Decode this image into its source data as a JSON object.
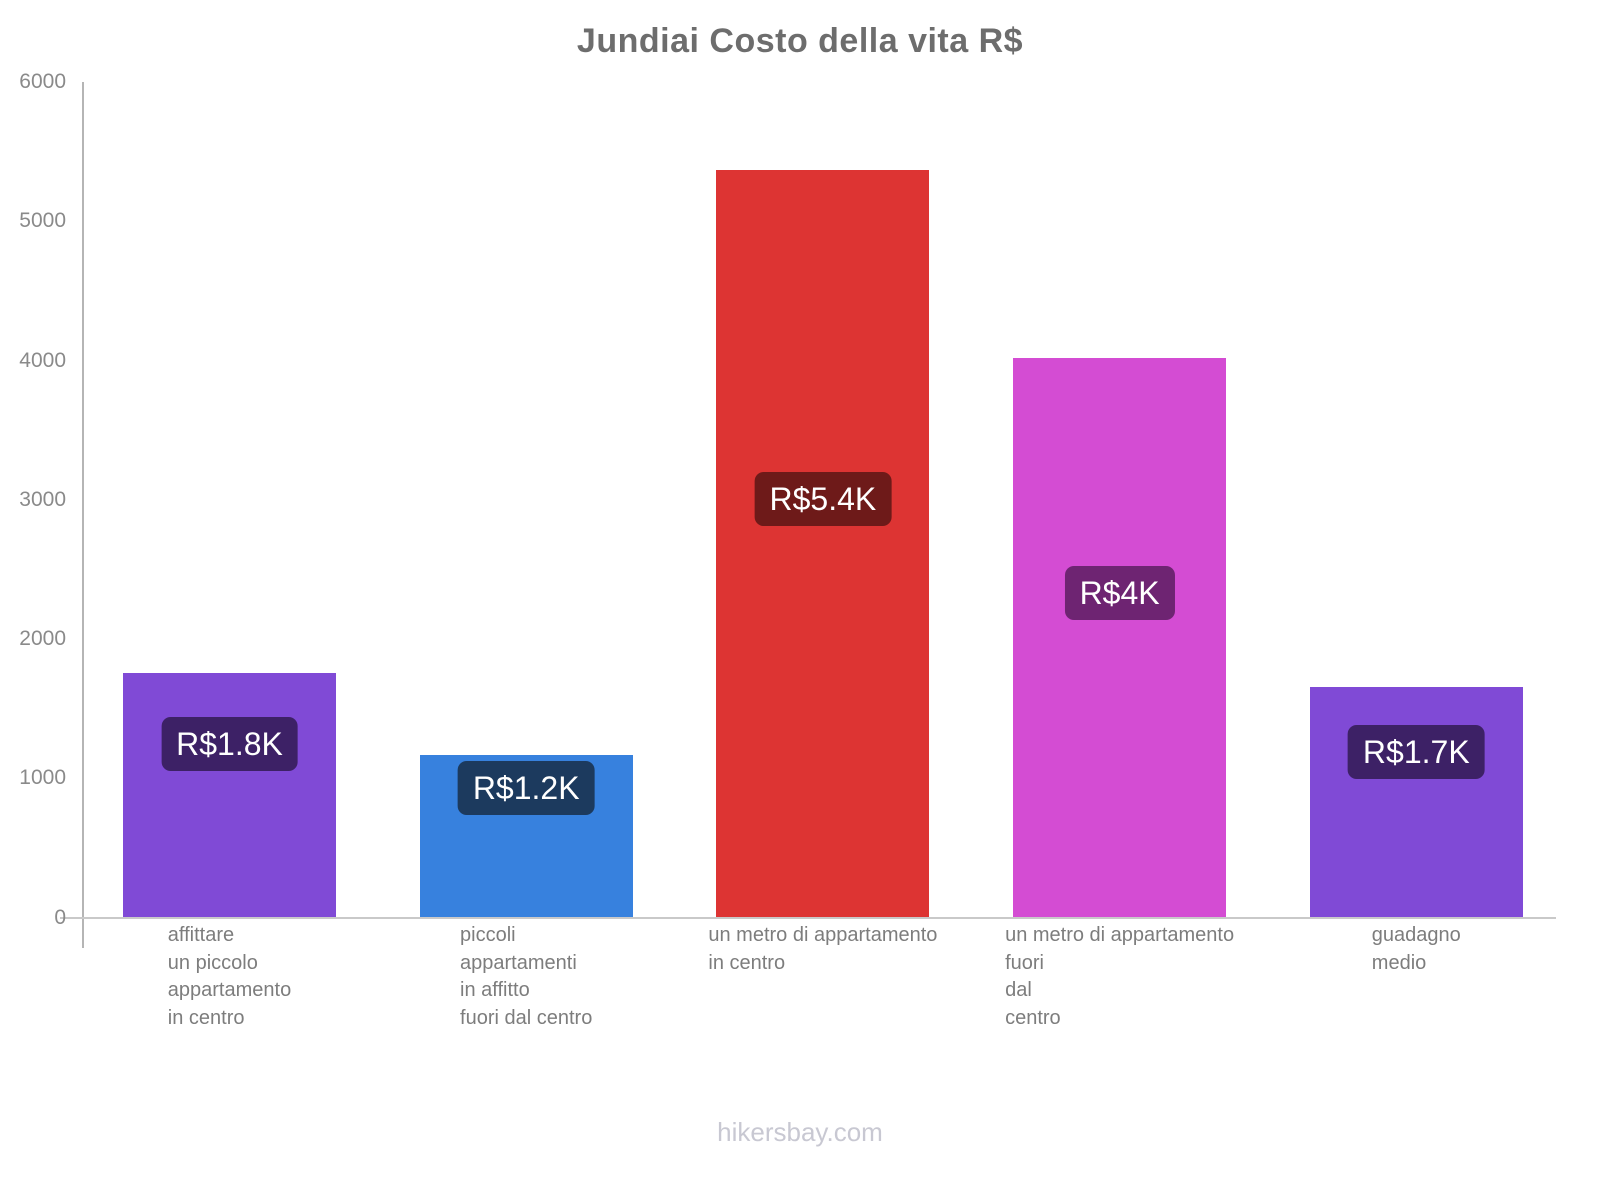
{
  "header": {
    "title": "Jundiai Costo della vita R$"
  },
  "footer": {
    "watermark": "hikersbay.com"
  },
  "chart_data": {
    "type": "bar",
    "title": "Jundiai Costo della vita R$",
    "currency": "R$",
    "xlabel": "",
    "ylabel": "",
    "ylim": [
      0,
      6000
    ],
    "yticks": [
      0,
      1000,
      2000,
      3000,
      4000,
      5000,
      6000
    ],
    "grid": false,
    "legend": false,
    "categories": [
      "affittare un piccolo appartamento in centro",
      "piccoli appartamenti in affitto fuori dal centro",
      "un metro di appartamento in centro",
      "un metro di appartamento fuori dal centro",
      "guadagno medio"
    ],
    "category_tick_lines": [
      [
        "affittare",
        "un piccolo",
        "appartamento",
        "in centro"
      ],
      [
        "piccoli",
        "appartamenti",
        "in affitto",
        "fuori dal centro"
      ],
      [
        "un metro di appartamento",
        "in centro"
      ],
      [
        "un metro di appartamento",
        "fuori",
        "dal",
        "centro"
      ],
      [
        "guadagno",
        "medio"
      ]
    ],
    "values": [
      1755,
      1165,
      5367,
      4017,
      1655
    ],
    "bar_value_labels": [
      "R$1.8K",
      "R$1.2K",
      "R$5.4K",
      "R$4K",
      "R$1.7K"
    ],
    "bar_colors": [
      "#804AD6",
      "#3781DE",
      "#DD3433",
      "#D44CD3",
      "#804AD6"
    ],
    "bar_label_bg_colors": [
      "#3D2166",
      "#1C3A5E",
      "#6E1A19",
      "#6E2472",
      "#3D2166"
    ],
    "bar_label_text_color": "#FFFFFF",
    "value_label_pos_frac": [
      0.29,
      0.2,
      0.44,
      0.42,
      0.28
    ],
    "title_color": "#6D6D6D",
    "axis_color": "#B5B5B5",
    "tick_label_color": "#8A8A8A",
    "category_label_color": "#7D7D7D",
    "watermark_color": "#C8C8D2"
  }
}
